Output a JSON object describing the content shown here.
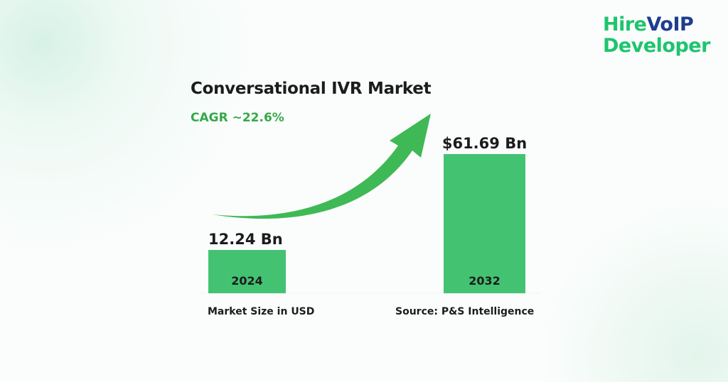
{
  "logo": {
    "part1": "Hire",
    "part2": "VoIP",
    "line2": "Developer",
    "colors": {
      "green": "#1ec46e",
      "blue": "#1d3d8f"
    }
  },
  "chart_data": {
    "type": "bar",
    "title": "Conversational IVR Market",
    "subtitle": "CAGR ~22.6%",
    "categories": [
      "2024",
      "2032"
    ],
    "values": [
      12.24,
      61.69
    ],
    "data_labels": [
      "12.24 Bn",
      "$61.69 Bn"
    ],
    "xlabel": "Market Size in USD",
    "source": "Source: P&S Intelligence",
    "bar_color": "#43c372",
    "arrow_color": "#3fb955",
    "grid": false
  }
}
